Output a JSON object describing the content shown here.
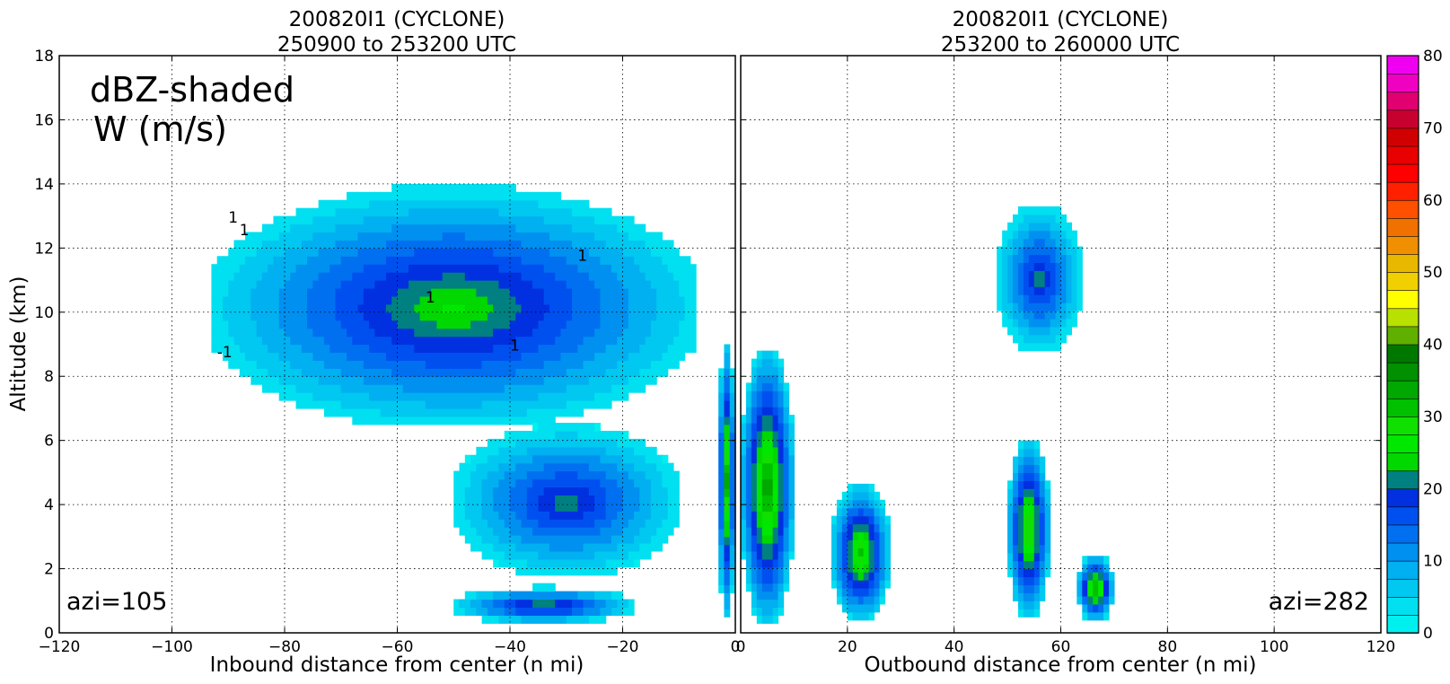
{
  "chart_data": [
    {
      "type": "heatmap",
      "title_line1": "200820I1 (CYCLONE)",
      "title_line2": "250900 to 253200 UTC",
      "xlabel": "Inbound distance from center (n mi)",
      "ylabel": "Altitude (km)",
      "xlim": [
        -120,
        0
      ],
      "ylim": [
        0,
        18
      ],
      "xticks": [
        -120,
        -100,
        -80,
        -60,
        -40,
        -20,
        0
      ],
      "xtick_labels": [
        "−120",
        "−100",
        "−80",
        "−60",
        "−40",
        "−20",
        "0"
      ],
      "yticks": [
        0,
        2,
        4,
        6,
        8,
        10,
        12,
        14,
        16,
        18
      ],
      "grid": true,
      "annotation_main": "dBZ-shaded",
      "annotation_sub": "W (m/s)",
      "azimuth_label": "azi=105",
      "contour_labels": [
        "1",
        "1",
        "1",
        "1",
        "1",
        "-1"
      ],
      "echo_regions": [
        {
          "x0": -93,
          "x1": -7,
          "y0": 6.5,
          "y1": 13.8,
          "max_dbz": 26
        },
        {
          "x0": -50,
          "x1": -10,
          "y0": 1.8,
          "y1": 6.4,
          "max_dbz": 22
        },
        {
          "x0": -50,
          "x1": -18,
          "y0": 0.3,
          "y1": 1.4,
          "max_dbz": 24
        },
        {
          "x0": -3,
          "x1": 0,
          "y0": 0.5,
          "y1": 9.0,
          "max_dbz": 34
        }
      ]
    },
    {
      "type": "heatmap",
      "title_line1": "200820I1 (CYCLONE)",
      "title_line2": "253200 to 260000 UTC",
      "xlabel": "Outbound distance from center (n mi)",
      "ylabel": "",
      "xlim": [
        0,
        120
      ],
      "ylim": [
        0,
        18
      ],
      "xticks": [
        0,
        20,
        40,
        60,
        80,
        100,
        120
      ],
      "xtick_labels": [
        "0",
        "20",
        "40",
        "60",
        "80",
        "100",
        "120"
      ],
      "grid": true,
      "azimuth_label": "azi=282",
      "echo_regions": [
        {
          "x0": 48,
          "x1": 64,
          "y0": 8.8,
          "y1": 13.3,
          "max_dbz": 22
        },
        {
          "x0": 0,
          "x1": 10,
          "y0": 0.3,
          "y1": 8.8,
          "max_dbz": 36
        },
        {
          "x0": 17,
          "x1": 28,
          "y0": 0.4,
          "y1": 4.6,
          "max_dbz": 32
        },
        {
          "x0": 50,
          "x1": 58,
          "y0": 0.5,
          "y1": 6.0,
          "max_dbz": 33
        },
        {
          "x0": 63,
          "x1": 70,
          "y0": 0.4,
          "y1": 2.4,
          "max_dbz": 35
        }
      ]
    }
  ],
  "colorbar": {
    "min": 0,
    "max": 80,
    "step": 2.5,
    "tick_values": [
      0,
      10,
      20,
      30,
      40,
      50,
      60,
      70,
      80
    ],
    "colors": [
      "#00f0f0",
      "#00e0f0",
      "#00c8f0",
      "#00b0f0",
      "#0090f0",
      "#0070f0",
      "#0050f0",
      "#0030e0",
      "#008080",
      "#00d800",
      "#00e800",
      "#10e000",
      "#00c000",
      "#00a800",
      "#009000",
      "#007800",
      "#60b000",
      "#b8e000",
      "#ffff00",
      "#f0d000",
      "#e8b800",
      "#f09000",
      "#f07000",
      "#ff5000",
      "#ff2000",
      "#ff0000",
      "#e80000",
      "#d00000",
      "#c80030",
      "#e00070",
      "#f000c0",
      "#f000f0",
      "#d040e0",
      "#b050d0",
      "#8040a0",
      "#502060",
      "#000000"
    ]
  }
}
